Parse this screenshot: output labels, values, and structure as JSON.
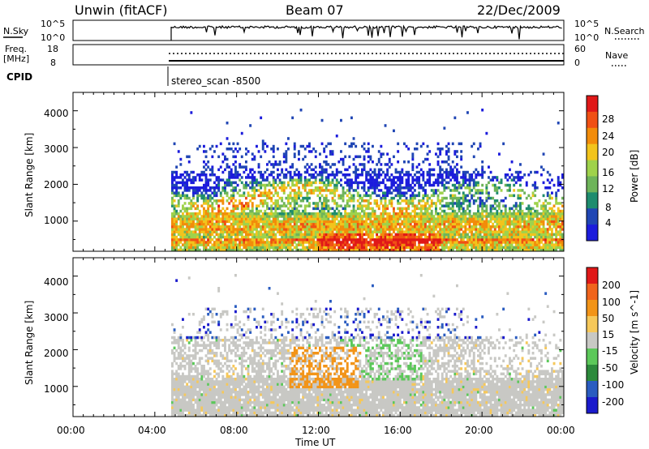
{
  "header": {
    "station": "Unwin (fitACF)",
    "beam": "Beam 07",
    "date": "22/Dec/2009"
  },
  "noise_panel": {
    "left_label": "N.Sky",
    "left_ticks": [
      "10^5",
      "10^0"
    ],
    "right_label": "N.Search",
    "right_ticks": [
      "10^5",
      "10^0"
    ]
  },
  "freq_panel": {
    "left_label_line1": "Freq.",
    "left_label_line2": "[MHz]",
    "left_ticks": [
      "18",
      "8"
    ],
    "right_label": "Nave",
    "right_ticks": [
      "60",
      "0"
    ]
  },
  "cpid": {
    "label": "CPID",
    "program": "stereo_scan -8500"
  },
  "x_axis": {
    "label": "Time UT",
    "ticks": [
      "00:00",
      "04:00",
      "08:00",
      "12:00",
      "16:00",
      "20:00",
      "00:00"
    ]
  },
  "power_panel": {
    "ylabel": "Slant Range [km]",
    "yticks": [
      "1000",
      "2000",
      "3000",
      "4000"
    ],
    "colorbar_label": "Power [dB]",
    "colorbar_ticks": [
      "4",
      "8",
      "12",
      "16",
      "20",
      "24",
      "28"
    ],
    "colors": [
      "#1c1cdc",
      "#2046b4",
      "#1e8c6e",
      "#6eb45a",
      "#9fd24b",
      "#f2c41c",
      "#f28c0a",
      "#f05014",
      "#e01818"
    ]
  },
  "velocity_panel": {
    "ylabel": "Slant Range [km]",
    "yticks": [
      "1000",
      "2000",
      "3000",
      "4000"
    ],
    "colorbar_label": "Velocity [m s^-1]",
    "colorbar_ticks": [
      "200",
      "100",
      "50",
      "15",
      "-15",
      "-50",
      "-100",
      "-200"
    ],
    "colors": [
      "#1a1acc",
      "#2a5cc0",
      "#2c8a3c",
      "#5cc85a",
      "#c8c8c4",
      "#f6c85a",
      "#f29418",
      "#f0641c",
      "#e01818"
    ]
  },
  "chart_data": {
    "type": "heatmap",
    "x_range_hours": [
      0,
      24
    ],
    "y_range_km": [
      180,
      4500
    ],
    "data_start_hour": 4.8,
    "power_db_range": [
      0,
      30
    ],
    "velocity_range": [
      -250,
      250
    ],
    "grid": false
  }
}
